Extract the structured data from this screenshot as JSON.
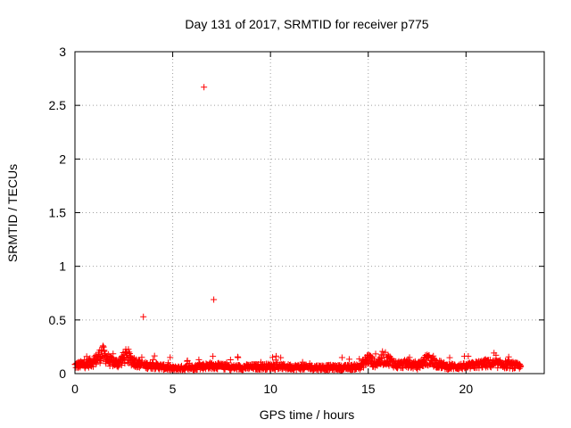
{
  "chart_data": {
    "type": "scatter",
    "title": "Day 131 of 2017, SRMTID for receiver p775",
    "xlabel": "GPS time / hours",
    "ylabel": "SRMTID / TECUs",
    "xlim": [
      0,
      24
    ],
    "ylim": [
      0,
      3
    ],
    "x_ticks": [
      0,
      5,
      10,
      15,
      20
    ],
    "x_tick_labels": [
      "0",
      "5",
      "10",
      "15",
      "20"
    ],
    "y_ticks": [
      0,
      0.5,
      1,
      1.5,
      2,
      2.5,
      3
    ],
    "y_tick_labels": [
      "0",
      "0.5",
      "1",
      "1.5",
      "2",
      "2.5",
      "3"
    ],
    "grid": true,
    "marker": "plus",
    "color": "#ff0000",
    "outliers": [
      [
        3.5,
        0.53
      ],
      [
        6.6,
        2.67
      ],
      [
        7.1,
        0.69
      ]
    ],
    "baseline_profile": [
      [
        0.0,
        0.08
      ],
      [
        0.5,
        0.09
      ],
      [
        1.0,
        0.12
      ],
      [
        1.4,
        0.2
      ],
      [
        1.8,
        0.12
      ],
      [
        2.2,
        0.1
      ],
      [
        2.6,
        0.17
      ],
      [
        3.0,
        0.12
      ],
      [
        3.5,
        0.08
      ],
      [
        4.0,
        0.08
      ],
      [
        5.0,
        0.05
      ],
      [
        6.0,
        0.06
      ],
      [
        7.0,
        0.08
      ],
      [
        8.0,
        0.06
      ],
      [
        10.0,
        0.07
      ],
      [
        12.0,
        0.06
      ],
      [
        14.0,
        0.06
      ],
      [
        14.6,
        0.07
      ],
      [
        15.0,
        0.15
      ],
      [
        15.3,
        0.1
      ],
      [
        15.9,
        0.15
      ],
      [
        16.5,
        0.08
      ],
      [
        17.0,
        0.1
      ],
      [
        17.5,
        0.07
      ],
      [
        18.0,
        0.14
      ],
      [
        18.5,
        0.1
      ],
      [
        19.0,
        0.07
      ],
      [
        20.0,
        0.07
      ],
      [
        21.0,
        0.1
      ],
      [
        22.0,
        0.09
      ],
      [
        22.8,
        0.07
      ]
    ],
    "series": [
      {
        "name": "SRMTID",
        "x_range": [
          0,
          22.8
        ],
        "n_points": 1368
      }
    ]
  }
}
